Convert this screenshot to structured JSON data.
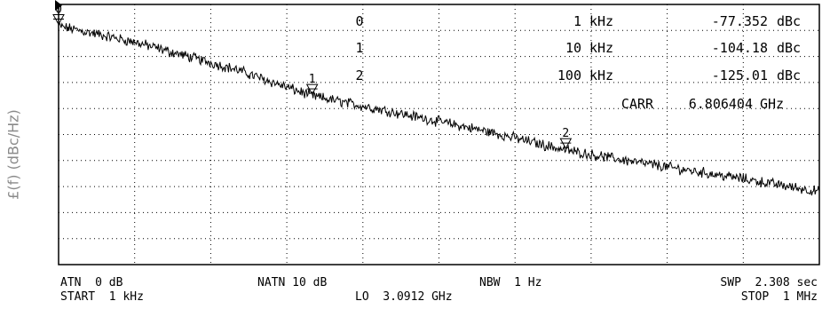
{
  "y_axis_label": "£(f) (dBc/Hz)",
  "markers": [
    {
      "id": "0",
      "freq": "1",
      "unit": "kHz",
      "value": "-77.352",
      "value_unit": "dBc"
    },
    {
      "id": "1",
      "freq": "10",
      "unit": "kHz",
      "value": "-104.18",
      "value_unit": "dBc"
    },
    {
      "id": "2",
      "freq": "100",
      "unit": "kHz",
      "value": "-125.01",
      "value_unit": "dBc"
    }
  ],
  "carrier": {
    "label": "CARR",
    "value": "6.806404",
    "unit": "GHz"
  },
  "footer": {
    "atn": "ATN  0 dB",
    "start": "START  1 kHz",
    "natn": "NATN 10 dB",
    "lo": "LO  3.0912 GHz",
    "nbw": "NBW  1 Hz",
    "swp": "SWP  2.308 sec",
    "stop": "STOP  1 MHz"
  },
  "chart_data": {
    "type": "line",
    "xscale": "log",
    "xlim_hz": [
      1000,
      1000000
    ],
    "ylabel": "£(f) (dBc/Hz)",
    "grid": true,
    "x_hz": [
      1000,
      2000,
      5000,
      10000,
      20000,
      50000,
      100000,
      200000,
      500000,
      1000000
    ],
    "y_dbc_hz": [
      -77.352,
      -83.5,
      -94,
      -104.18,
      -110,
      -118,
      -125.01,
      -130,
      -136,
      -141
    ]
  },
  "colors": {
    "trace": "#000000",
    "grid": "#000000",
    "background": "#ffffff"
  }
}
